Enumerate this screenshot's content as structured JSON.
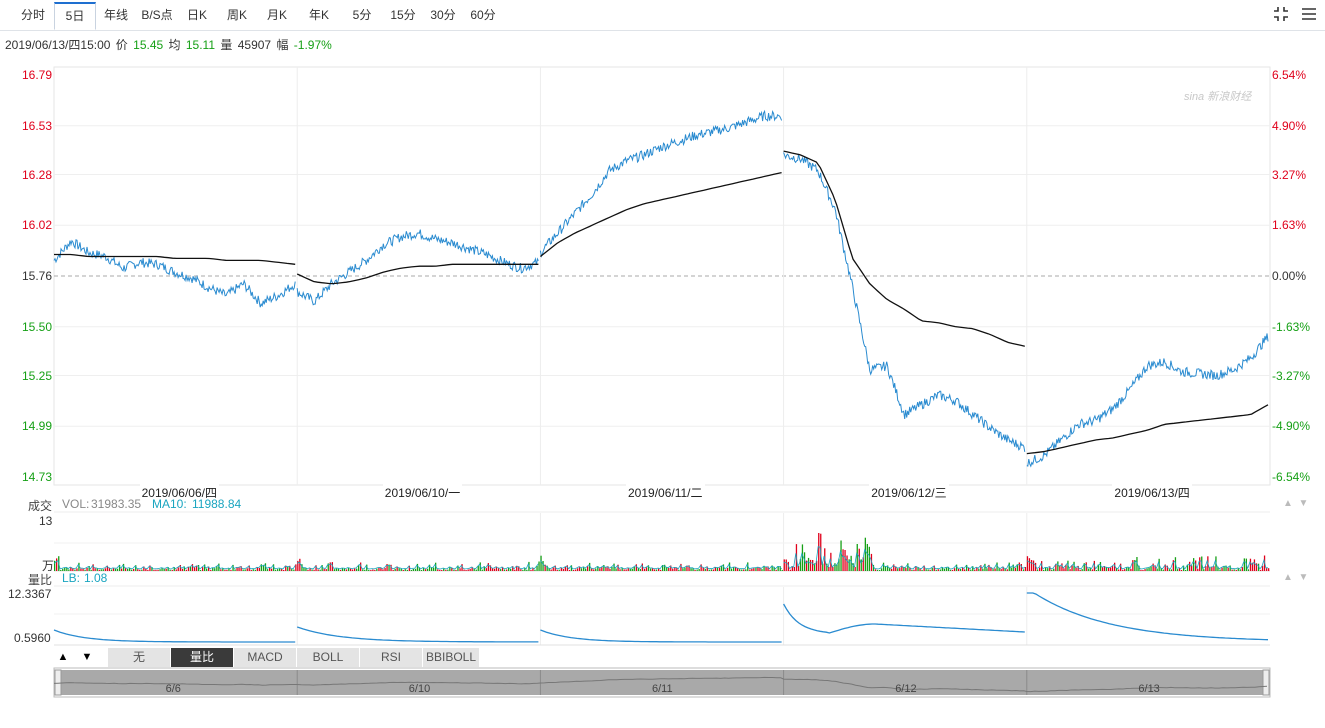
{
  "toolbar": {
    "tabs": [
      {
        "label": "分时",
        "active": false
      },
      {
        "label": "5日",
        "active": true
      },
      {
        "label": "年线",
        "active": false
      },
      {
        "label": "B/S点",
        "active": false
      },
      {
        "label": "日K",
        "active": false
      },
      {
        "label": "周K",
        "active": false
      },
      {
        "label": "月K",
        "active": false
      },
      {
        "label": "年K",
        "active": false
      },
      {
        "label": "5分",
        "active": false
      },
      {
        "label": "15分",
        "active": false
      },
      {
        "label": "30分",
        "active": false
      },
      {
        "label": "60分",
        "active": false
      }
    ],
    "icons": [
      "shrink-icon",
      "menu-icon"
    ]
  },
  "info": {
    "datetime": "2019/06/13/四15:00",
    "price_label": "价",
    "price": "15.45",
    "avg_label": "均",
    "avg": "15.11",
    "vol_label": "量",
    "vol": "45907",
    "chg_label": "幅",
    "chg": "-1.97%"
  },
  "watermark": "sina 新浪财经",
  "colors": {
    "up": "#e0001b",
    "down": "#16a016",
    "price_line": "#2a8bd0",
    "avg_line": "#111111",
    "ma10": "#1aa5c0"
  },
  "chart_data": [
    {
      "type": "line",
      "name": "price-panel",
      "y_ticks_left": [
        "16.79",
        "16.53",
        "16.28",
        "16.02",
        "15.76",
        "15.50",
        "15.25",
        "14.99",
        "14.73"
      ],
      "y_ticks_right": [
        "6.54%",
        "4.90%",
        "3.27%",
        "1.63%",
        "0.00%",
        "-1.63%",
        "-3.27%",
        "-4.90%",
        "-6.54%"
      ],
      "ylim": [
        14.73,
        16.79
      ],
      "prev_close": 15.76,
      "days": [
        "2019/06/06/四",
        "2019/06/10/一",
        "2019/06/11/二",
        "2019/06/12/三",
        "2019/06/13/四"
      ],
      "series": [
        {
          "key": "price",
          "values": [
            [
              15.84,
              15.94,
              15.88,
              15.86,
              15.8,
              15.83,
              15.82,
              15.78,
              15.75,
              15.7,
              15.66,
              15.72,
              15.62,
              15.66,
              15.72
            ],
            [
              15.68,
              15.63,
              15.72,
              15.78,
              15.84,
              15.92,
              15.96,
              15.98,
              15.95,
              15.93,
              15.9,
              15.87,
              15.83,
              15.8,
              15.83
            ],
            [
              15.88,
              15.98,
              16.08,
              16.18,
              16.3,
              16.35,
              16.38,
              16.42,
              16.45,
              16.48,
              16.5,
              16.52,
              16.55,
              16.58,
              16.58
            ],
            [
              16.38,
              16.36,
              16.3,
              16.1,
              15.7,
              15.28,
              15.3,
              15.05,
              15.1,
              15.15,
              15.12,
              15.05,
              14.98,
              14.92,
              14.88
            ],
            [
              14.8,
              14.84,
              14.92,
              15.0,
              15.02,
              15.08,
              15.18,
              15.3,
              15.32,
              15.27,
              15.26,
              15.25,
              15.28,
              15.34,
              15.45
            ]
          ]
        },
        {
          "key": "avg",
          "values": [
            [
              15.87,
              15.87,
              15.86,
              15.86,
              15.86,
              15.86,
              15.86,
              15.85,
              15.85,
              15.85,
              15.84,
              15.84,
              15.84,
              15.83,
              15.82
            ],
            [
              15.77,
              15.73,
              15.72,
              15.73,
              15.75,
              15.78,
              15.8,
              15.81,
              15.81,
              15.82,
              15.82,
              15.82,
              15.82,
              15.82,
              15.82
            ],
            [
              15.86,
              15.93,
              15.98,
              16.02,
              16.06,
              16.1,
              16.13,
              16.15,
              16.17,
              16.19,
              16.21,
              16.23,
              16.25,
              16.27,
              16.29
            ],
            [
              16.4,
              16.38,
              16.34,
              16.15,
              15.85,
              15.72,
              15.64,
              15.59,
              15.53,
              15.52,
              15.5,
              15.49,
              15.46,
              15.42,
              15.4
            ],
            [
              14.85,
              14.86,
              14.88,
              14.9,
              14.92,
              14.93,
              14.95,
              14.97,
              15.0,
              15.01,
              15.02,
              15.03,
              15.04,
              15.05,
              15.1
            ]
          ]
        }
      ]
    },
    {
      "type": "bar",
      "name": "volume-panel",
      "title": "成交",
      "legend": [
        {
          "label": "VOL:",
          "value": "31983.35"
        },
        {
          "label": "MA10:",
          "value": "11988.84"
        }
      ],
      "y_top_label": "13",
      "y_unit_label": "万",
      "ylim": [
        0,
        130000
      ]
    },
    {
      "type": "line",
      "name": "volume-ratio-panel",
      "title": "量比",
      "legend": [
        {
          "label": "LB:",
          "value": "1.08"
        }
      ],
      "y_ticks": [
        "12.3367",
        "0.5960"
      ],
      "ylim": [
        0.596,
        12.3367
      ]
    }
  ],
  "indicator_buttons": [
    {
      "label": "无",
      "active": false
    },
    {
      "label": "量比",
      "active": true
    },
    {
      "label": "MACD",
      "active": false
    },
    {
      "label": "BOLL",
      "active": false
    },
    {
      "label": "RSI",
      "active": false
    },
    {
      "label": "BBIBOLL",
      "active": false
    }
  ],
  "nav_labels": [
    "6/6",
    "6/10",
    "6/11",
    "6/12",
    "6/13"
  ]
}
